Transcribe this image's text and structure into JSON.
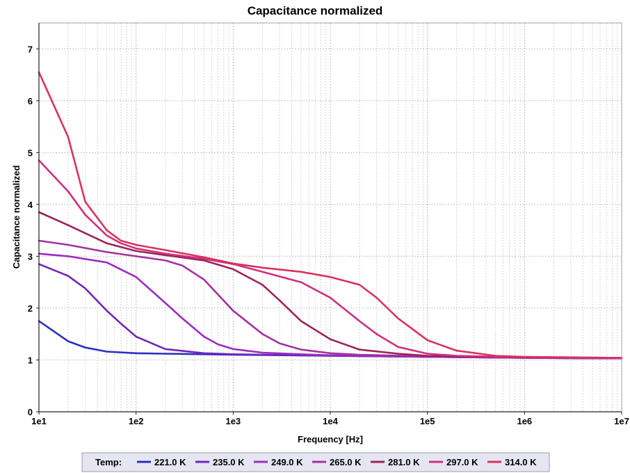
{
  "chart_data": {
    "type": "line",
    "title": "Capacitance normalized",
    "xlabel": "Frequency [Hz]",
    "ylabel": "Capacitance normalized",
    "x_scale": "log",
    "xlim": [
      10,
      10000000
    ],
    "ylim": [
      0,
      7.5
    ],
    "x_ticks": [
      10,
      100,
      1000,
      10000,
      100000,
      1000000,
      10000000
    ],
    "x_tick_labels": [
      "1e1",
      "1e2",
      "1e3",
      "1e4",
      "1e5",
      "1e6",
      "1e7"
    ],
    "y_ticks": [
      0,
      1,
      2,
      3,
      4,
      5,
      6,
      7
    ],
    "y_tick_labels": [
      "0",
      "1",
      "2",
      "3",
      "4",
      "5",
      "6",
      "7"
    ],
    "grid": true,
    "legend": {
      "title": "Temp:",
      "placement": "bottom"
    },
    "series": [
      {
        "name": "221.0 K",
        "color": "#2b2ec0",
        "x": [
          10,
          20,
          30,
          50,
          100,
          200,
          500,
          1000,
          10000,
          100000,
          1000000,
          10000000
        ],
        "y": [
          1.75,
          1.36,
          1.24,
          1.16,
          1.13,
          1.12,
          1.11,
          1.1,
          1.08,
          1.06,
          1.04,
          1.03
        ]
      },
      {
        "name": "235.0 K",
        "color": "#7026b8",
        "x": [
          10,
          20,
          30,
          50,
          70,
          100,
          200,
          500,
          1000,
          10000,
          100000,
          1000000,
          10000000
        ],
        "y": [
          2.85,
          2.62,
          2.38,
          1.95,
          1.7,
          1.45,
          1.21,
          1.13,
          1.11,
          1.08,
          1.06,
          1.04,
          1.03
        ]
      },
      {
        "name": "249.0 K",
        "color": "#9a2cc0",
        "x": [
          10,
          20,
          50,
          100,
          200,
          300,
          500,
          700,
          1000,
          2000,
          5000,
          10000,
          100000,
          1000000,
          10000000
        ],
        "y": [
          3.05,
          3.0,
          2.88,
          2.6,
          2.1,
          1.8,
          1.45,
          1.3,
          1.21,
          1.14,
          1.11,
          1.09,
          1.06,
          1.04,
          1.03
        ]
      },
      {
        "name": "265.0 K",
        "color": "#a3329c",
        "x": [
          10,
          20,
          50,
          100,
          200,
          300,
          500,
          1000,
          2000,
          3000,
          5000,
          10000,
          20000,
          100000,
          1000000,
          10000000
        ],
        "y": [
          3.3,
          3.22,
          3.08,
          3.0,
          2.92,
          2.82,
          2.55,
          1.95,
          1.5,
          1.32,
          1.2,
          1.13,
          1.1,
          1.07,
          1.05,
          1.04
        ]
      },
      {
        "name": "281.0 K",
        "color": "#9a2458",
        "x": [
          10,
          20,
          50,
          100,
          200,
          500,
          1000,
          2000,
          3000,
          5000,
          10000,
          20000,
          50000,
          100000,
          1000000,
          10000000
        ],
        "y": [
          3.85,
          3.6,
          3.25,
          3.1,
          3.02,
          2.92,
          2.75,
          2.45,
          2.15,
          1.75,
          1.4,
          1.2,
          1.12,
          1.08,
          1.05,
          1.04
        ]
      },
      {
        "name": "297.0 K",
        "color": "#cf2f7f",
        "x": [
          10,
          20,
          30,
          50,
          70,
          100,
          200,
          500,
          1000,
          2000,
          5000,
          10000,
          20000,
          30000,
          50000,
          100000,
          200000,
          1000000,
          10000000
        ],
        "y": [
          4.85,
          4.25,
          3.8,
          3.4,
          3.25,
          3.15,
          3.05,
          2.95,
          2.85,
          2.7,
          2.5,
          2.2,
          1.75,
          1.5,
          1.25,
          1.12,
          1.08,
          1.05,
          1.04
        ]
      },
      {
        "name": "314.0 K",
        "color": "#d8335c",
        "x": [
          10,
          20,
          30,
          50,
          70,
          100,
          200,
          500,
          1000,
          2000,
          5000,
          10000,
          20000,
          30000,
          50000,
          100000,
          200000,
          500000,
          1000000,
          10000000
        ],
        "y": [
          6.55,
          5.3,
          4.05,
          3.5,
          3.3,
          3.22,
          3.12,
          2.98,
          2.86,
          2.78,
          2.7,
          2.6,
          2.45,
          2.2,
          1.8,
          1.38,
          1.18,
          1.08,
          1.06,
          1.04
        ]
      }
    ]
  }
}
